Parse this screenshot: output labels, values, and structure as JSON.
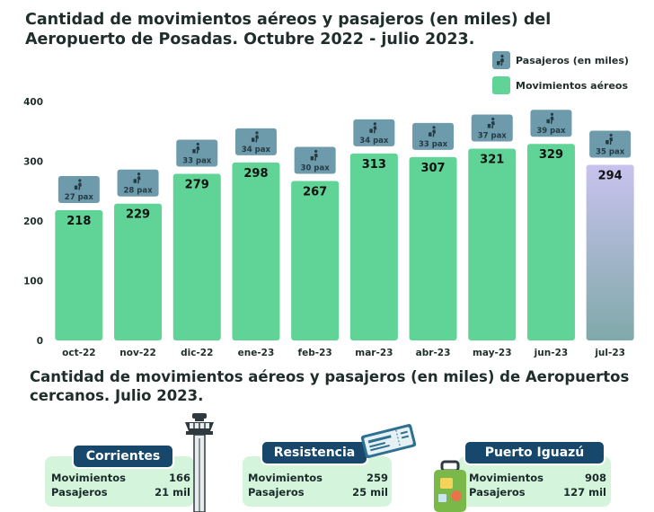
{
  "title": "Cantidad de movimientos aéreos y pasajeros (en miles) del Aeropuerto de Posadas. Octubre 2022 - julio 2023.",
  "legend": {
    "pasajeros": "Pasajeros (en miles)",
    "movimientos": "Movimientos aéreos"
  },
  "colors": {
    "bar": "#5fd496",
    "bar_last_top": "#c8c2ee",
    "bar_last_bottom": "#80a9a9",
    "badge": "#6d9bab",
    "badge_dark": "#243a45",
    "text": "#1f2d2b"
  },
  "chart_data": {
    "type": "bar",
    "categories": [
      "oct-22",
      "nov-22",
      "dic-22",
      "ene-23",
      "feb-23",
      "mar-23",
      "abr-23",
      "may-23",
      "jun-23",
      "jul-23"
    ],
    "series": [
      {
        "name": "Movimientos aéreos",
        "values": [
          218,
          229,
          279,
          298,
          267,
          313,
          307,
          321,
          329,
          294
        ]
      },
      {
        "name": "Pasajeros (en miles)",
        "values": [
          27,
          28,
          33,
          34,
          30,
          34,
          33,
          37,
          39,
          35
        ]
      }
    ],
    "pax_labels": [
      "27 pax",
      "28 pax",
      "33 pax",
      "34 pax",
      "30 pax",
      "34 pax",
      "33 pax",
      "37 pax",
      "39 pax",
      "35 pax"
    ],
    "yticks": [
      0,
      100,
      200,
      300,
      400
    ],
    "ylim": [
      0,
      400
    ],
    "highlight_last": true
  },
  "subtitle": "Cantidad de movimientos aéreos y pasajeros (en miles) de Aeropuertos cercanos. Julio 2023.",
  "cards": [
    {
      "name": "Corrientes",
      "mov_label": "Movimientos",
      "mov_value": "166",
      "pas_label": "Pasajeros",
      "pas_value": "21 mil"
    },
    {
      "name": "Resistencia",
      "mov_label": "Movimientos",
      "mov_value": "259",
      "pas_label": "Pasajeros",
      "pas_value": "25 mil"
    },
    {
      "name": "Puerto Iguazú",
      "mov_label": "Movimientos",
      "mov_value": "908",
      "pas_label": "Pasajeros",
      "pas_value": "127 mil"
    }
  ]
}
